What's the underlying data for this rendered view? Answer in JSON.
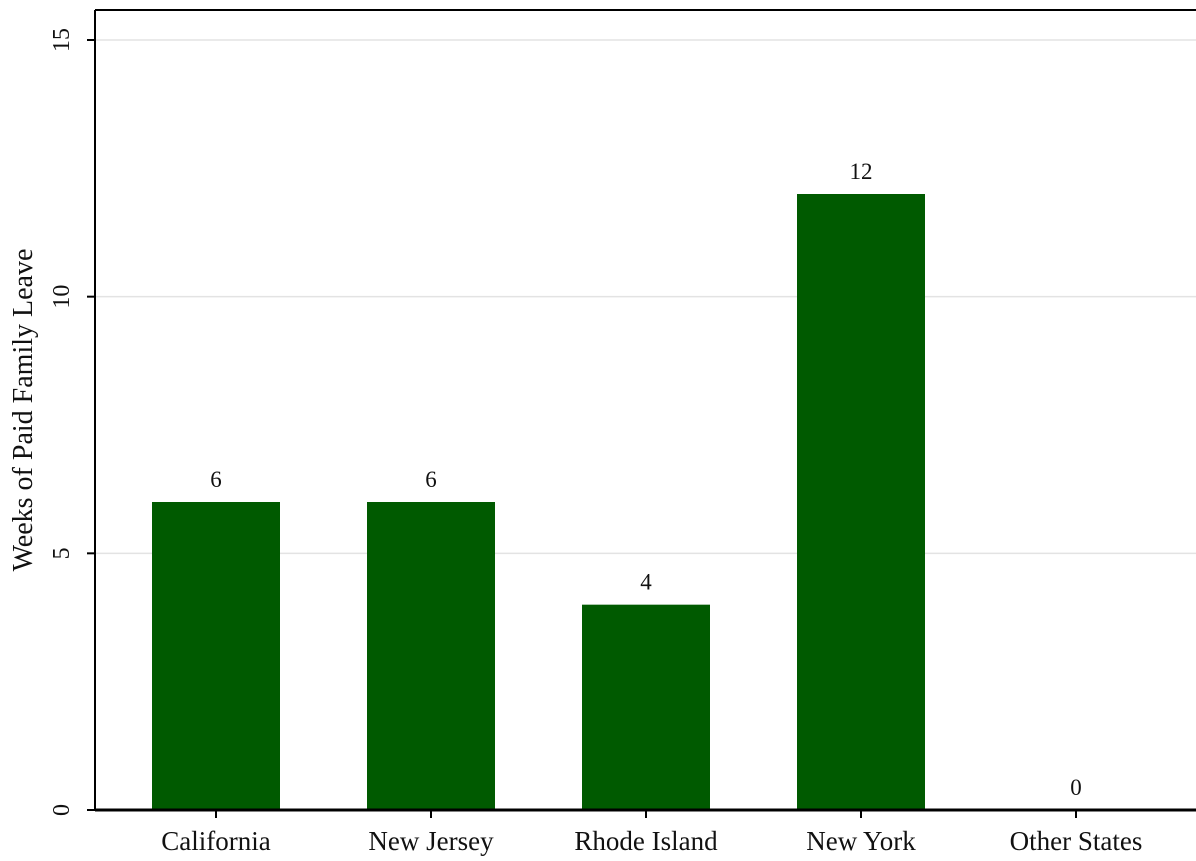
{
  "chart_data": {
    "type": "bar",
    "title": "",
    "xlabel": "",
    "ylabel": "Weeks of Paid Family Leave",
    "categories": [
      "California",
      "New Jersey",
      "Rhode Island",
      "New York",
      "Other States"
    ],
    "values": [
      6,
      6,
      4,
      12,
      0
    ],
    "value_labels": [
      "6",
      "6",
      "4",
      "12",
      "0"
    ],
    "ylim": [
      0,
      15
    ],
    "yticks": [
      0,
      5,
      10,
      15
    ],
    "ytick_labels": [
      "0",
      "5",
      "10",
      "15"
    ],
    "grid": true,
    "bar_color": "#005a00",
    "grid_color": "#e3e3e3"
  }
}
